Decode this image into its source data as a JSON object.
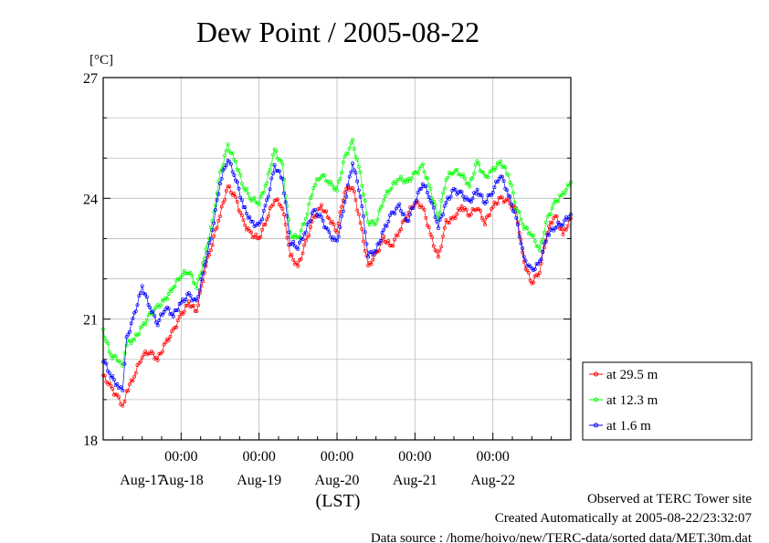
{
  "chart_data": {
    "type": "line",
    "title": "Dew Point / 2005-08-22",
    "yunit": "[°C]",
    "xlabel": "(LST)",
    "ylim": [
      18,
      27
    ],
    "yticks": [
      18,
      21,
      24,
      27
    ],
    "xlim": [
      0,
      6
    ],
    "time_ticks": [
      {
        "x": 1.0,
        "time": "00:00",
        "date": "Aug-18"
      },
      {
        "x": 2.0,
        "time": "00:00",
        "date": "Aug-19"
      },
      {
        "x": 3.0,
        "time": "00:00",
        "date": "Aug-20"
      },
      {
        "x": 4.0,
        "time": "00:00",
        "date": "Aug-21"
      },
      {
        "x": 5.0,
        "time": "00:00",
        "date": "Aug-22"
      }
    ],
    "first_date_label": {
      "x": 0.5,
      "date": "Aug-17"
    },
    "grid": true,
    "legend_position": "right",
    "series": [
      {
        "name": "at 29.5 m",
        "color": "#ff0000",
        "x": [
          0.0,
          0.1,
          0.2,
          0.25,
          0.3,
          0.4,
          0.5,
          0.6,
          0.7,
          0.8,
          0.9,
          1.0,
          1.1,
          1.2,
          1.3,
          1.4,
          1.5,
          1.6,
          1.7,
          1.8,
          1.9,
          2.0,
          2.1,
          2.2,
          2.3,
          2.4,
          2.5,
          2.6,
          2.7,
          2.8,
          2.9,
          3.0,
          3.1,
          3.2,
          3.3,
          3.4,
          3.5,
          3.6,
          3.7,
          3.8,
          3.9,
          4.0,
          4.1,
          4.2,
          4.3,
          4.4,
          4.5,
          4.6,
          4.7,
          4.8,
          4.9,
          5.0,
          5.1,
          5.2,
          5.3,
          5.4,
          5.5,
          5.6,
          5.7,
          5.8,
          5.9,
          6.0
        ],
        "values": [
          19.6,
          19.3,
          19.0,
          18.8,
          19.2,
          19.6,
          20.1,
          20.2,
          20.0,
          20.4,
          20.7,
          21.1,
          21.4,
          21.2,
          22.2,
          22.9,
          23.6,
          24.3,
          24.0,
          23.4,
          23.1,
          23.0,
          23.5,
          24.0,
          23.8,
          22.6,
          22.3,
          22.9,
          23.5,
          23.8,
          23.5,
          23.2,
          24.2,
          24.3,
          23.4,
          22.3,
          22.6,
          23.0,
          22.8,
          23.2,
          23.6,
          23.9,
          23.8,
          23.1,
          22.5,
          23.4,
          23.5,
          23.8,
          23.6,
          23.8,
          23.4,
          23.8,
          24.0,
          23.9,
          23.7,
          22.4,
          21.9,
          22.2,
          23.2,
          23.6,
          23.1,
          23.5
        ]
      },
      {
        "name": "at 12.3 m",
        "color": "#00ff00",
        "x": [
          0.0,
          0.1,
          0.2,
          0.25,
          0.3,
          0.4,
          0.5,
          0.6,
          0.7,
          0.8,
          0.9,
          1.0,
          1.1,
          1.2,
          1.3,
          1.4,
          1.5,
          1.6,
          1.7,
          1.8,
          1.9,
          2.0,
          2.1,
          2.2,
          2.3,
          2.4,
          2.5,
          2.6,
          2.7,
          2.8,
          2.9,
          3.0,
          3.1,
          3.2,
          3.3,
          3.4,
          3.5,
          3.6,
          3.7,
          3.8,
          3.9,
          4.0,
          4.1,
          4.2,
          4.3,
          4.4,
          4.5,
          4.6,
          4.7,
          4.8,
          4.9,
          5.0,
          5.1,
          5.2,
          5.3,
          5.4,
          5.5,
          5.6,
          5.7,
          5.8,
          5.9,
          6.0
        ],
        "values": [
          20.7,
          20.1,
          20.0,
          19.9,
          20.4,
          20.5,
          20.8,
          21.1,
          21.3,
          21.5,
          21.8,
          22.1,
          22.2,
          21.8,
          22.5,
          23.4,
          24.6,
          25.3,
          24.9,
          24.3,
          24.0,
          23.9,
          24.4,
          25.2,
          24.8,
          23.1,
          23.0,
          23.5,
          24.3,
          24.6,
          24.4,
          24.2,
          25.0,
          25.4,
          24.6,
          23.4,
          23.4,
          24.0,
          24.3,
          24.5,
          24.4,
          24.6,
          24.8,
          24.2,
          23.5,
          24.5,
          24.7,
          24.6,
          24.3,
          24.9,
          24.5,
          24.7,
          24.9,
          24.6,
          23.8,
          23.3,
          23.1,
          22.7,
          23.5,
          23.9,
          24.1,
          24.4
        ]
      },
      {
        "name": "at 1.6 m",
        "color": "#0000ff",
        "x": [
          0.0,
          0.1,
          0.2,
          0.25,
          0.3,
          0.4,
          0.5,
          0.6,
          0.7,
          0.8,
          0.9,
          1.0,
          1.1,
          1.2,
          1.3,
          1.4,
          1.5,
          1.6,
          1.7,
          1.8,
          1.9,
          2.0,
          2.1,
          2.2,
          2.3,
          2.4,
          2.5,
          2.6,
          2.7,
          2.8,
          2.9,
          3.0,
          3.1,
          3.2,
          3.3,
          3.4,
          3.5,
          3.6,
          3.7,
          3.8,
          3.9,
          4.0,
          4.1,
          4.2,
          4.3,
          4.4,
          4.5,
          4.6,
          4.7,
          4.8,
          4.9,
          5.0,
          5.1,
          5.2,
          5.3,
          5.4,
          5.5,
          5.6,
          5.7,
          5.8,
          5.9,
          6.0
        ],
        "values": [
          20.0,
          19.6,
          19.3,
          19.2,
          20.5,
          21.1,
          21.8,
          21.3,
          20.9,
          21.3,
          21.1,
          21.4,
          21.6,
          21.4,
          22.3,
          23.2,
          24.4,
          25.0,
          24.5,
          23.8,
          23.4,
          23.3,
          23.9,
          24.8,
          24.5,
          22.9,
          22.8,
          23.2,
          23.7,
          23.5,
          23.1,
          22.9,
          23.9,
          24.9,
          24.1,
          22.6,
          22.7,
          23.2,
          23.6,
          23.8,
          23.4,
          23.9,
          24.4,
          24.0,
          23.3,
          23.9,
          24.2,
          24.1,
          23.9,
          24.2,
          23.9,
          24.2,
          24.6,
          24.1,
          23.5,
          22.5,
          22.2,
          22.4,
          23.1,
          23.3,
          23.4,
          23.6
        ]
      }
    ]
  },
  "footer": {
    "line1": "Observed at TERC Tower site",
    "line2": "Created Automatically at 2005-08-22/23:32:07",
    "line3": "Data source : /home/hoivo/new/TERC-data/sorted  data/MET.30m.dat"
  }
}
